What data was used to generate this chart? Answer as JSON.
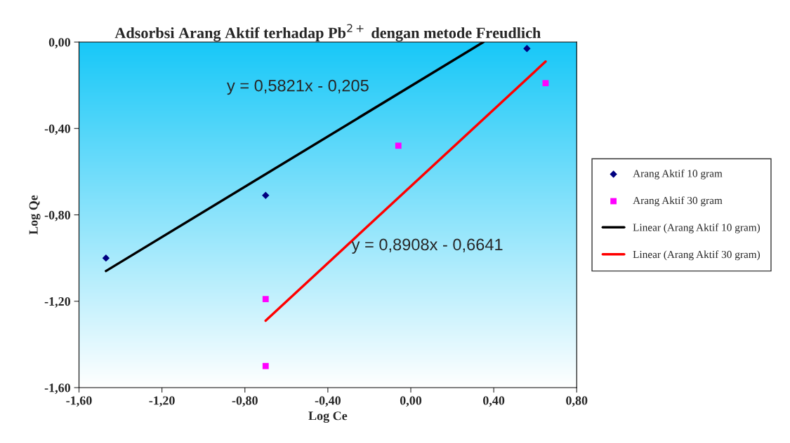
{
  "chart_data": {
    "type": "scatter",
    "title": "Adsorbsi Arang Aktif terhadap Pb$^{2+}$ dengan metode Freudlich",
    "xlabel": "Log Ce",
    "ylabel": "Log Qe",
    "series": [
      {
        "name": "Arang Aktif 10 gram",
        "marker": "diamond",
        "color": "#000080",
        "x": [
          -1.47,
          -0.7,
          0.56
        ],
        "values": [
          -1.0,
          -0.71,
          -0.03
        ]
      },
      {
        "name": "Arang Aktif 30 gram",
        "marker": "square",
        "color": "#ff00ff",
        "x": [
          -0.7,
          -0.7,
          -0.06,
          0.65
        ],
        "values": [
          -1.19,
          -1.5,
          -0.48,
          -0.19
        ]
      },
      {
        "name": "Linear (Arang Aktif 10 gram)",
        "type": "line",
        "color": "#000000",
        "x": [
          -1.47,
          0.35
        ],
        "values": [
          -1.06,
          0.0
        ]
      },
      {
        "name": "Linear (Arang Aktif 30 gram)",
        "type": "line",
        "color": "#ff0000",
        "x": [
          -0.7,
          0.65
        ],
        "values": [
          -1.29,
          -0.09
        ]
      }
    ],
    "xlim": [
      -1.6,
      0.8
    ],
    "ylim": [
      -1.6,
      0.0
    ],
    "xticks": [
      {
        "value": -1.6,
        "label": "-1,60"
      },
      {
        "value": -1.2,
        "label": "-1,20"
      },
      {
        "value": -0.8,
        "label": "-0,80"
      },
      {
        "value": -0.4,
        "label": "-0,40"
      },
      {
        "value": 0.0,
        "label": "0,00"
      },
      {
        "value": 0.4,
        "label": "0,40"
      },
      {
        "value": 0.8,
        "label": "0,80"
      }
    ],
    "yticks": [
      {
        "value": -1.6,
        "label": "-1,60"
      },
      {
        "value": -1.2,
        "label": "-1,20"
      },
      {
        "value": -0.8,
        "label": "-0,80"
      },
      {
        "value": -0.4,
        "label": "-0,40"
      },
      {
        "value": 0.0,
        "label": "0,00"
      }
    ],
    "annotations": [
      "y = 0,5821x - 0,205",
      "y = 0,8908x - 0,6641"
    ],
    "grid": false,
    "legend": "right"
  }
}
